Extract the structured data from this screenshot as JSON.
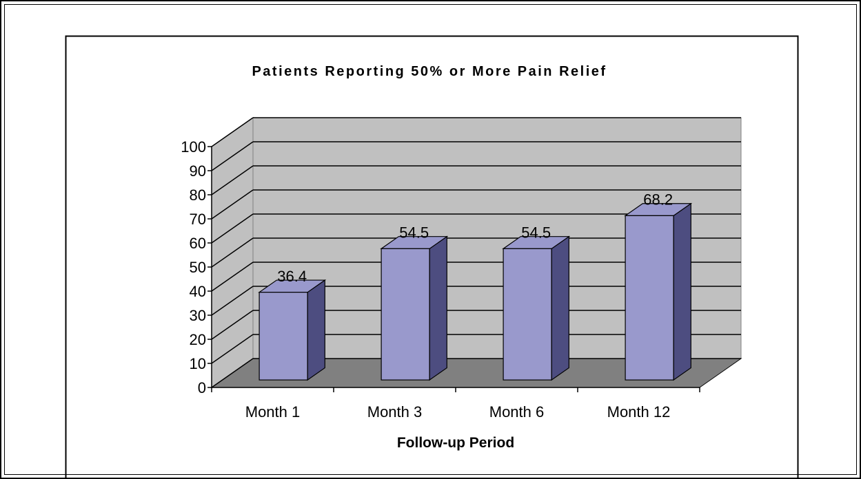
{
  "chart_data": {
    "type": "bar3d",
    "title": "Patients Reporting 50% or More Pain Relief",
    "x_label": "Follow-up Period",
    "categories": [
      "Month 1",
      "Month 3",
      "Month 6",
      "Month 12"
    ],
    "values": [
      36.4,
      54.5,
      54.5,
      68.2
    ],
    "color": "#9999cc",
    "side_color": "#4d4d80",
    "wall_color": "#c0c0c0",
    "floor_color": "#808080",
    "ylim": [
      0,
      100
    ],
    "yticks": [
      0,
      10,
      20,
      30,
      40,
      50,
      60,
      70,
      80,
      90,
      100
    ],
    "grid": true
  }
}
